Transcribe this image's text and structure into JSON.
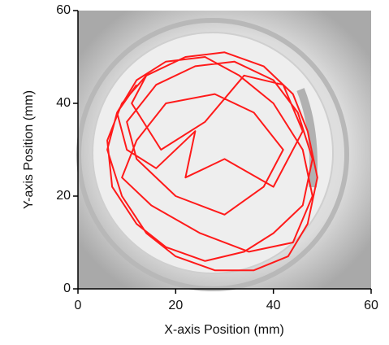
{
  "chart_data": {
    "type": "line",
    "xlabel": "X-axis Position (mm)",
    "ylabel": "Y-axis Position (mm)",
    "xlim": [
      0,
      60
    ],
    "ylim": [
      0,
      60
    ],
    "xticks": [
      0,
      20,
      40,
      60
    ],
    "yticks": [
      0,
      20,
      40,
      60
    ],
    "series": [
      {
        "color": "#ff1a1a",
        "x": [
          12,
          8,
          6,
          9,
          14,
          20,
          28,
          36,
          43,
          47,
          49,
          47,
          44,
          38,
          30,
          22,
          14,
          9,
          6,
          7,
          12,
          18,
          26,
          34,
          40,
          46,
          48,
          45,
          40,
          32,
          24,
          16,
          10,
          12,
          20,
          30,
          38,
          42,
          36,
          28,
          18,
          12,
          9,
          15,
          25,
          35,
          44,
          48,
          46,
          40,
          33,
          26,
          18,
          12,
          8,
          10,
          16,
          24,
          22,
          30,
          40,
          46,
          42,
          34,
          26,
          17,
          11,
          14
        ],
        "values": [
          44,
          38,
          30,
          20,
          12,
          7,
          4,
          4,
          7,
          14,
          24,
          34,
          42,
          48,
          51,
          50,
          46,
          40,
          32,
          22,
          14,
          9,
          6,
          8,
          12,
          18,
          28,
          38,
          45,
          49,
          48,
          44,
          36,
          28,
          20,
          16,
          22,
          30,
          38,
          42,
          40,
          32,
          24,
          18,
          12,
          8,
          10,
          20,
          30,
          40,
          46,
          50,
          49,
          45,
          38,
          30,
          26,
          34,
          24,
          28,
          22,
          34,
          44,
          46,
          36,
          30,
          40,
          46
        ]
      }
    ]
  }
}
